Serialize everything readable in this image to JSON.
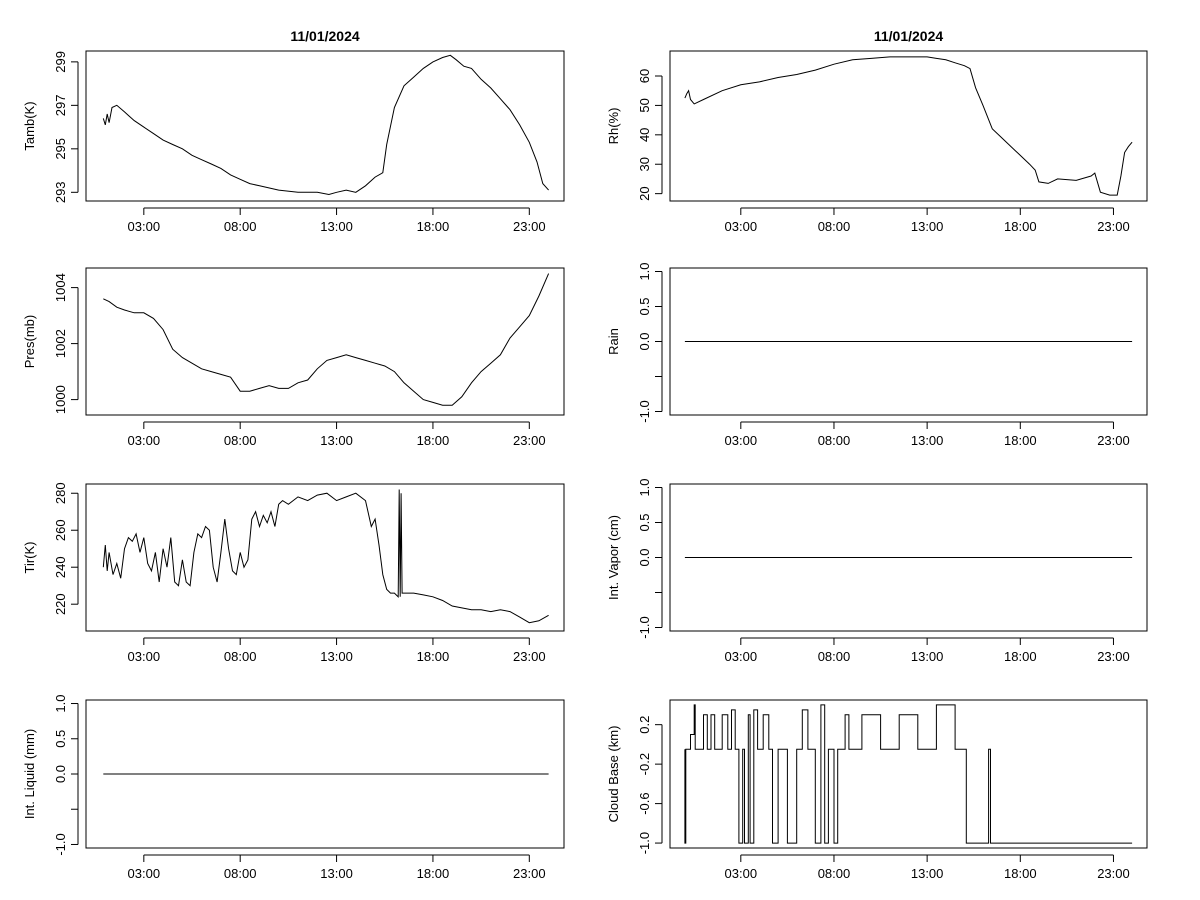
{
  "chart_data": [
    {
      "type": "line",
      "title": "11/01/2024",
      "ylabel": "Tamb(K)",
      "xlabel": "",
      "xlim": [
        0,
        24.8
      ],
      "ylim": [
        292.6,
        299.5
      ],
      "yticks": [
        293,
        295,
        297,
        299
      ],
      "ytick_labels": [
        "293",
        "295",
        "297",
        "299"
      ],
      "xticks": [
        3,
        8,
        13,
        18,
        23
      ],
      "xtick_labels": [
        "03:00",
        "08:00",
        "13:00",
        "18:00",
        "23:00"
      ],
      "grid": false,
      "series": [
        {
          "name": "Tamb",
          "x": [
            0.9,
            1.0,
            1.1,
            1.2,
            1.35,
            1.6,
            2.0,
            2.5,
            3.0,
            3.5,
            4.0,
            4.5,
            5.0,
            5.5,
            6.0,
            6.5,
            7.0,
            7.5,
            8.0,
            8.5,
            9.0,
            10.0,
            11.0,
            12.0,
            12.6,
            13.0,
            13.5,
            14.0,
            14.5,
            15.0,
            15.4,
            15.6,
            16.0,
            16.5,
            17.0,
            17.5,
            18.0,
            18.5,
            18.9,
            19.2,
            19.6,
            20.0,
            20.5,
            21.0,
            21.5,
            22.0,
            22.5,
            23.0,
            23.4,
            23.7,
            24.0
          ],
          "values": [
            296.4,
            296.1,
            296.6,
            296.2,
            296.9,
            297.0,
            296.7,
            296.3,
            296.0,
            295.7,
            295.4,
            295.2,
            295.0,
            294.7,
            294.5,
            294.3,
            294.1,
            293.8,
            293.6,
            293.4,
            293.3,
            293.1,
            293.0,
            293.0,
            292.9,
            293.0,
            293.1,
            293.0,
            293.3,
            293.7,
            293.9,
            295.2,
            296.9,
            297.9,
            298.3,
            298.7,
            299.0,
            299.2,
            299.3,
            299.1,
            298.8,
            298.7,
            298.2,
            297.8,
            297.3,
            296.8,
            296.1,
            295.3,
            294.4,
            293.4,
            293.1
          ]
        }
      ]
    },
    {
      "type": "line",
      "title": "11/01/2024",
      "ylabel": "Rh(%)",
      "xlabel": "",
      "xlim": [
        -0.8,
        24.8
      ],
      "ylim": [
        17.5,
        68.5
      ],
      "yticks": [
        20,
        30,
        40,
        50,
        60
      ],
      "ytick_labels": [
        "20",
        "30",
        "40",
        "50",
        "60"
      ],
      "xticks": [
        3,
        8,
        13,
        18,
        23
      ],
      "xtick_labels": [
        "03:00",
        "08:00",
        "13:00",
        "18:00",
        "23:00"
      ],
      "grid": false,
      "series": [
        {
          "name": "Rh",
          "x": [
            0.0,
            0.1,
            0.2,
            0.3,
            0.5,
            1.0,
            2.0,
            3.0,
            4.0,
            5.0,
            6.0,
            7.0,
            8.0,
            9.0,
            10.0,
            11.0,
            12.0,
            13.0,
            13.5,
            14.0,
            14.5,
            15.0,
            15.3,
            15.6,
            16.0,
            16.5,
            17.0,
            17.5,
            18.0,
            18.5,
            18.8,
            19.0,
            19.5,
            20.0,
            21.0,
            21.8,
            22.0,
            22.3,
            22.8,
            23.2,
            23.4,
            23.6,
            23.8,
            24.0
          ],
          "values": [
            52.5,
            54.0,
            55.0,
            52.0,
            50.5,
            52.0,
            55.0,
            57.0,
            58.0,
            59.5,
            60.5,
            62.0,
            64.0,
            65.5,
            66.0,
            66.5,
            66.5,
            66.5,
            66.0,
            65.5,
            64.5,
            63.5,
            62.5,
            56.0,
            50.0,
            42.0,
            39.0,
            36.0,
            33.0,
            30.0,
            28.0,
            24.0,
            23.5,
            25.0,
            24.5,
            26.0,
            27.0,
            20.5,
            19.5,
            19.5,
            26.0,
            34.0,
            36.0,
            37.5
          ]
        }
      ]
    },
    {
      "type": "line",
      "title": "",
      "ylabel": "Pres(mb)",
      "xlabel": "",
      "xlim": [
        0,
        24.8
      ],
      "ylim": [
        999.45,
        1004.7
      ],
      "yticks": [
        1000,
        1002,
        1004
      ],
      "ytick_labels": [
        "1000",
        "1002",
        "1004"
      ],
      "xticks": [
        3,
        8,
        13,
        18,
        23
      ],
      "xtick_labels": [
        "03:00",
        "08:00",
        "13:00",
        "18:00",
        "23:00"
      ],
      "grid": false,
      "series": [
        {
          "name": "Pres",
          "x": [
            0.9,
            1.2,
            1.6,
            2.0,
            2.5,
            3.0,
            3.5,
            4.0,
            4.5,
            5.0,
            5.5,
            6.0,
            6.5,
            7.0,
            7.5,
            8.0,
            8.5,
            9.0,
            9.5,
            10.0,
            10.5,
            11.0,
            11.5,
            12.0,
            12.5,
            13.0,
            13.5,
            14.0,
            14.5,
            15.0,
            15.5,
            16.0,
            16.5,
            17.0,
            17.5,
            18.0,
            18.5,
            19.0,
            19.5,
            20.0,
            20.5,
            21.0,
            21.5,
            22.0,
            22.5,
            23.0,
            23.5,
            24.0
          ],
          "values": [
            1003.6,
            1003.5,
            1003.3,
            1003.2,
            1003.1,
            1003.1,
            1002.9,
            1002.5,
            1001.8,
            1001.5,
            1001.3,
            1001.1,
            1001.0,
            1000.9,
            1000.8,
            1000.3,
            1000.3,
            1000.4,
            1000.5,
            1000.4,
            1000.4,
            1000.6,
            1000.7,
            1001.1,
            1001.4,
            1001.5,
            1001.6,
            1001.5,
            1001.4,
            1001.3,
            1001.2,
            1001.0,
            1000.6,
            1000.3,
            1000.0,
            999.9,
            999.8,
            999.8,
            1000.1,
            1000.6,
            1001.0,
            1001.3,
            1001.6,
            1002.2,
            1002.6,
            1003.0,
            1003.7,
            1004.5
          ]
        }
      ]
    },
    {
      "type": "line",
      "title": "",
      "ylabel": "Rain",
      "xlabel": "",
      "xlim": [
        -0.8,
        24.8
      ],
      "ylim": [
        -1.05,
        1.05
      ],
      "yticks": [
        -1.0,
        -0.5,
        0.0,
        0.5,
        1.0
      ],
      "ytick_labels": [
        "-1.0",
        "",
        "0.0",
        "0.5",
        "1.0"
      ],
      "xticks": [
        3,
        8,
        13,
        18,
        23
      ],
      "xtick_labels": [
        "03:00",
        "08:00",
        "13:00",
        "18:00",
        "23:00"
      ],
      "grid": false,
      "series": [
        {
          "name": "Rain",
          "x": [
            0.0,
            24.0
          ],
          "values": [
            0.0,
            0.0
          ]
        }
      ]
    },
    {
      "type": "line",
      "title": "",
      "ylabel": "Tir(K)",
      "xlabel": "",
      "xlim": [
        0,
        24.8
      ],
      "ylim": [
        205.5,
        285.0
      ],
      "yticks": [
        220,
        240,
        260,
        280
      ],
      "ytick_labels": [
        "220",
        "240",
        "260",
        "280"
      ],
      "xticks": [
        3,
        8,
        13,
        18,
        23
      ],
      "xtick_labels": [
        "03:00",
        "08:00",
        "13:00",
        "18:00",
        "23:00"
      ],
      "grid": false,
      "series": [
        {
          "name": "Tir",
          "x": [
            0.9,
            1.0,
            1.1,
            1.2,
            1.4,
            1.6,
            1.8,
            2.0,
            2.2,
            2.4,
            2.6,
            2.8,
            3.0,
            3.2,
            3.4,
            3.6,
            3.8,
            4.0,
            4.2,
            4.4,
            4.6,
            4.8,
            5.0,
            5.2,
            5.4,
            5.6,
            5.8,
            6.0,
            6.2,
            6.4,
            6.6,
            6.8,
            7.0,
            7.2,
            7.4,
            7.6,
            7.8,
            8.0,
            8.2,
            8.4,
            8.6,
            8.8,
            9.0,
            9.2,
            9.4,
            9.6,
            9.8,
            10.0,
            10.2,
            10.5,
            11.0,
            11.5,
            12.0,
            12.5,
            13.0,
            13.5,
            14.0,
            14.5,
            14.8,
            15.0,
            15.2,
            15.4,
            15.6,
            15.8,
            16.0,
            16.2,
            16.25,
            16.3,
            16.35,
            16.4,
            16.5,
            17.0,
            17.5,
            18.0,
            18.5,
            19.0,
            19.5,
            20.0,
            20.5,
            21.0,
            21.5,
            22.0,
            22.5,
            23.0,
            23.5,
            24.0
          ],
          "values": [
            240,
            252,
            238,
            248,
            236,
            242,
            234,
            250,
            256,
            254,
            258,
            248,
            256,
            242,
            238,
            248,
            232,
            250,
            240,
            256,
            232,
            230,
            244,
            232,
            230,
            248,
            258,
            256,
            262,
            260,
            240,
            232,
            248,
            266,
            250,
            238,
            236,
            248,
            240,
            244,
            266,
            270,
            262,
            268,
            264,
            270,
            262,
            274,
            276,
            274,
            278,
            276,
            279,
            280,
            276,
            278,
            280,
            276,
            262,
            266,
            252,
            236,
            228,
            226,
            226,
            224,
            282,
            224,
            280,
            226,
            226,
            226,
            225,
            224,
            222,
            219,
            218,
            217,
            217,
            216,
            217,
            216,
            213,
            210,
            211,
            214
          ]
        }
      ]
    },
    {
      "type": "line",
      "title": "",
      "ylabel": "Int. Vapor (cm)",
      "xlabel": "",
      "xlim": [
        -0.8,
        24.8
      ],
      "ylim": [
        -1.05,
        1.05
      ],
      "yticks": [
        -1.0,
        -0.5,
        0.0,
        0.5,
        1.0
      ],
      "ytick_labels": [
        "-1.0",
        "",
        "0.0",
        "0.5",
        "1.0"
      ],
      "xticks": [
        3,
        8,
        13,
        18,
        23
      ],
      "xtick_labels": [
        "03:00",
        "08:00",
        "13:00",
        "18:00",
        "23:00"
      ],
      "grid": false,
      "series": [
        {
          "name": "Int. Vapor",
          "x": [
            0.0,
            24.0
          ],
          "values": [
            0.0,
            0.0
          ]
        }
      ]
    },
    {
      "type": "line",
      "title": "",
      "ylabel": "Int. Liquid (mm)",
      "xlabel": "",
      "xlim": [
        0,
        24.8
      ],
      "ylim": [
        -1.05,
        1.05
      ],
      "yticks": [
        -1.0,
        -0.5,
        0.0,
        0.5,
        1.0
      ],
      "ytick_labels": [
        "-1.0",
        "",
        "0.0",
        "0.5",
        "1.0"
      ],
      "xticks": [
        3,
        8,
        13,
        18,
        23
      ],
      "xtick_labels": [
        "03:00",
        "08:00",
        "13:00",
        "18:00",
        "23:00"
      ],
      "grid": false,
      "series": [
        {
          "name": "Int. Liquid",
          "x": [
            0.9,
            24.0
          ],
          "values": [
            0.0,
            0.0
          ]
        }
      ]
    },
    {
      "type": "line",
      "title": "",
      "ylabel": "Cloud Base (km)",
      "xlabel": "",
      "xlim": [
        -0.8,
        24.8
      ],
      "ylim": [
        -1.05,
        0.45
      ],
      "yticks": [
        -1.0,
        -0.6,
        -0.2,
        0.2
      ],
      "ytick_labels": [
        "-1.0",
        "-0.6",
        "-0.2",
        "0.2"
      ],
      "xticks": [
        3,
        8,
        13,
        18,
        23
      ],
      "xtick_labels": [
        "03:00",
        "08:00",
        "13:00",
        "18:00",
        "23:00"
      ],
      "grid": false,
      "series": [
        {
          "name": "Cloud Base",
          "x": [
            0.0,
            0.0,
            0.05,
            0.05,
            0.3,
            0.3,
            0.5,
            0.5,
            0.55,
            0.55,
            1.0,
            1.0,
            1.2,
            1.2,
            1.4,
            1.4,
            1.6,
            1.6,
            2.0,
            2.0,
            2.3,
            2.3,
            2.5,
            2.5,
            2.7,
            2.7,
            2.9,
            2.9,
            3.1,
            3.1,
            3.2,
            3.2,
            3.4,
            3.4,
            3.5,
            3.5,
            3.7,
            3.7,
            3.9,
            3.9,
            4.2,
            4.2,
            4.5,
            4.5,
            4.7,
            4.7,
            5.0,
            5.0,
            5.5,
            5.5,
            6.0,
            6.0,
            6.3,
            6.3,
            6.6,
            6.6,
            7.0,
            7.0,
            7.3,
            7.3,
            7.5,
            7.5,
            7.7,
            7.7,
            8.0,
            8.0,
            8.2,
            8.2,
            8.6,
            8.6,
            8.8,
            8.8,
            9.5,
            9.5,
            10.5,
            10.5,
            11.5,
            11.5,
            12.5,
            12.5,
            13.5,
            13.5,
            14.5,
            14.5,
            15.1,
            15.1,
            15.2,
            15.2,
            16.3,
            16.3,
            16.4,
            16.4,
            16.5,
            16.5,
            24.0
          ],
          "values": [
            -0.05,
            -1.0,
            -1.0,
            -0.05,
            -0.05,
            0.1,
            0.1,
            0.4,
            0.4,
            -0.05,
            -0.05,
            0.3,
            0.3,
            -0.05,
            -0.05,
            0.3,
            0.3,
            -0.05,
            -0.05,
            0.3,
            0.3,
            -0.05,
            -0.05,
            0.35,
            0.35,
            -0.05,
            -0.05,
            -1.0,
            -1.0,
            -0.05,
            -0.05,
            -1.0,
            -1.0,
            0.3,
            0.3,
            -1.0,
            -1.0,
            0.35,
            0.35,
            -0.05,
            -0.05,
            0.3,
            0.3,
            -0.05,
            -0.05,
            -1.0,
            -1.0,
            -0.05,
            -0.05,
            -1.0,
            -1.0,
            -0.05,
            -0.05,
            0.35,
            0.35,
            -0.05,
            -0.05,
            -1.0,
            -1.0,
            0.4,
            0.4,
            -1.0,
            -1.0,
            -0.05,
            -0.05,
            -1.0,
            -1.0,
            -0.05,
            -0.05,
            0.3,
            0.3,
            -0.05,
            -0.05,
            0.3,
            0.3,
            -0.05,
            -0.05,
            0.3,
            0.3,
            -0.05,
            -0.05,
            0.4,
            0.4,
            -0.05,
            -0.05,
            -1.0,
            -1.0,
            -1.0,
            -1.0,
            -0.05,
            -0.05,
            -1.0,
            -1.0,
            -1.0,
            -1.0
          ]
        }
      ]
    }
  ]
}
